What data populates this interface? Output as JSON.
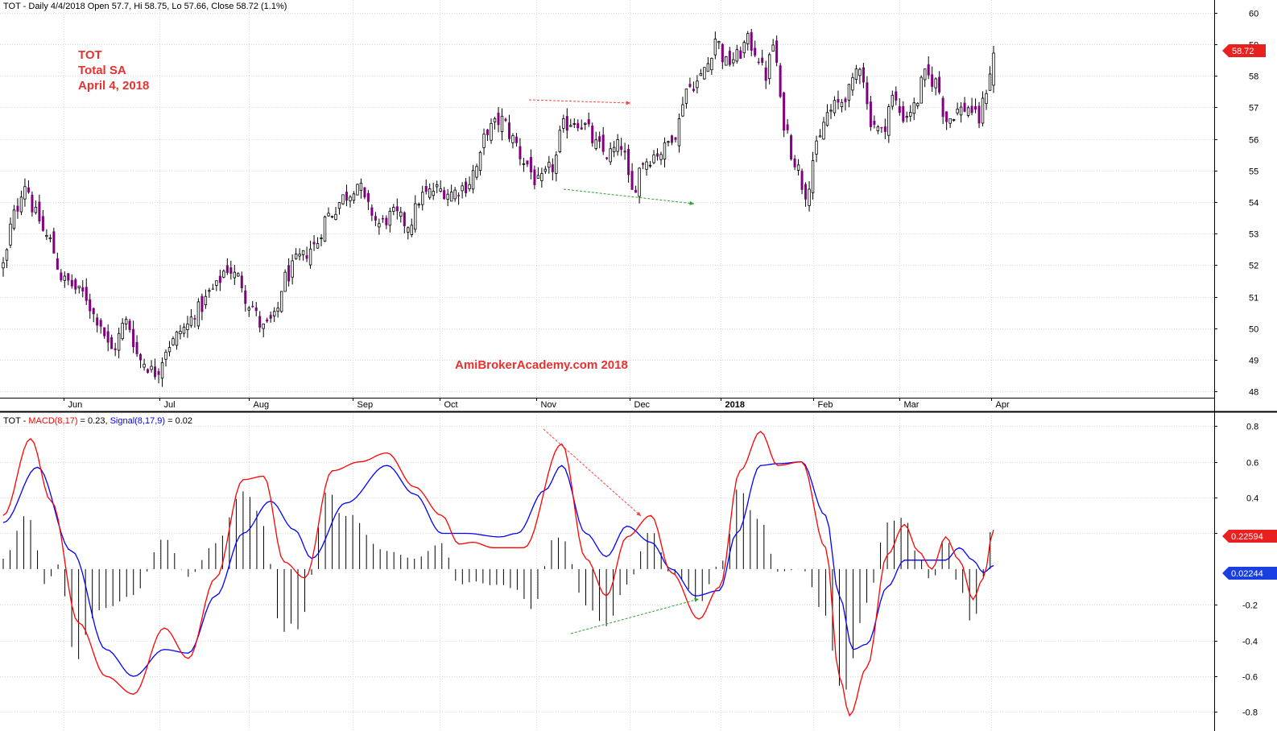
{
  "price_header": {
    "symbol": "TOT",
    "text": "TOT - Daily 4/4/2018 Open 57.7, Hi 58.75, Lo 57.66, Close 58.72 (1.1%)"
  },
  "notes": {
    "line1": "TOT",
    "line2": "Total SA",
    "line3": "April 4, 2018"
  },
  "watermark": "AmiBrokerAcademy.com  2018",
  "macd_header": {
    "prefix": "TOT - ",
    "macd_label": "MACD(8,17)",
    "macd_value": " = 0.23, ",
    "signal_label": "Signal(8,17,9)",
    "signal_value": " = 0.02"
  },
  "badges": {
    "last_close": "58.72",
    "macd_last": "0.22594",
    "signal_last": "0.02244"
  },
  "colors": {
    "up_body": "#ffffff",
    "down_body": "#800080",
    "wick": "#000000",
    "macd_line": "#ff0000",
    "signal_line": "#0000ff",
    "histogram": "#000000",
    "grid": "#d8d8d8",
    "annotation_red": "#ff4040",
    "annotation_green": "#30a030",
    "badge_red": "#e8201f",
    "badge_blue": "#1a3fe0"
  },
  "chart_data": [
    {
      "type": "candlestick",
      "title": "TOT - Daily 4/4/2018 Open 57.7, Hi 58.75, Lo 57.66, Close 58.72 (1.1%)",
      "ylim": [
        47.8,
        60.3
      ],
      "y_ticks": [
        48,
        49,
        50,
        51,
        52,
        53,
        54,
        55,
        56,
        57,
        58,
        59,
        60
      ],
      "x_labels": [
        {
          "label": "Jun",
          "pos": 0.05
        },
        {
          "label": "Jul",
          "pos": 0.125
        },
        {
          "label": "Aug",
          "pos": 0.195
        },
        {
          "label": "Sep",
          "pos": 0.276
        },
        {
          "label": "Oct",
          "pos": 0.344
        },
        {
          "label": "Nov",
          "pos": 0.42
        },
        {
          "label": "Dec",
          "pos": 0.493
        },
        {
          "label": "2018",
          "pos": 0.564,
          "bold": true
        },
        {
          "label": "Feb",
          "pos": 0.637
        },
        {
          "label": "Mar",
          "pos": 0.704
        },
        {
          "label": "Apr",
          "pos": 0.776
        }
      ],
      "grid": true,
      "anchors": [
        [
          0,
          52.0
        ],
        [
          3,
          53.6
        ],
        [
          6,
          54.6
        ],
        [
          9,
          53.6
        ],
        [
          12,
          52.9
        ],
        [
          17,
          51.5
        ],
        [
          22,
          51.1
        ],
        [
          26,
          50.3
        ],
        [
          30,
          49.3
        ],
        [
          34,
          50.2
        ],
        [
          38,
          49.0
        ],
        [
          42,
          48.6
        ],
        [
          46,
          49.5
        ],
        [
          50,
          50.0
        ],
        [
          54,
          50.6
        ],
        [
          58,
          51.2
        ],
        [
          62,
          51.9
        ],
        [
          65,
          51.6
        ],
        [
          68,
          50.8
        ],
        [
          72,
          50.0
        ],
        [
          75,
          50.3
        ],
        [
          78,
          51.6
        ],
        [
          82,
          52.2
        ],
        [
          86,
          52.6
        ],
        [
          90,
          53.6
        ],
        [
          95,
          54.2
        ],
        [
          98,
          54.6
        ],
        [
          101,
          53.8
        ],
        [
          104,
          53.3
        ],
        [
          108,
          53.6
        ],
        [
          112,
          53.3
        ],
        [
          116,
          54.2
        ],
        [
          120,
          54.4
        ],
        [
          124,
          54.3
        ],
        [
          128,
          54.5
        ],
        [
          131,
          55.1
        ],
        [
          134,
          56.3
        ],
        [
          138,
          56.6
        ],
        [
          141,
          56.0
        ],
        [
          144,
          55.3
        ],
        [
          148,
          54.6
        ],
        [
          152,
          55.1
        ],
        [
          155,
          56.4
        ],
        [
          158,
          56.6
        ],
        [
          161,
          56.4
        ],
        [
          164,
          55.8
        ],
        [
          167,
          55.5
        ],
        [
          171,
          55.8
        ],
        [
          174,
          54.3
        ],
        [
          177,
          55.3
        ],
        [
          182,
          55.6
        ],
        [
          186,
          56.2
        ],
        [
          189,
          57.6
        ],
        [
          192,
          57.8
        ],
        [
          195,
          58.4
        ],
        [
          197,
          59.2
        ],
        [
          200,
          58.4
        ],
        [
          203,
          58.6
        ],
        [
          206,
          59.1
        ],
        [
          208,
          58.8
        ],
        [
          211,
          58.0
        ],
        [
          213,
          59.0
        ],
        [
          216,
          56.5
        ],
        [
          219,
          55.3
        ],
        [
          222,
          54.3
        ],
        [
          225,
          55.7
        ],
        [
          228,
          56.8
        ],
        [
          231,
          57.1
        ],
        [
          234,
          57.5
        ],
        [
          237,
          58.4
        ],
        [
          240,
          56.6
        ],
        [
          243,
          56.2
        ],
        [
          246,
          57.3
        ],
        [
          249,
          56.7
        ],
        [
          252,
          57.0
        ],
        [
          255,
          58.0
        ],
        [
          258,
          57.8
        ],
        [
          261,
          56.6
        ],
        [
          264,
          56.9
        ],
        [
          267,
          57.0
        ],
        [
          270,
          56.6
        ],
        [
          272,
          57.6
        ],
        [
          274,
          58.72
        ]
      ]
    },
    {
      "type": "line",
      "title": "TOT - MACD(8,17) = 0.23, Signal(8,17,9) = 0.02",
      "ylim": [
        -0.87,
        0.86
      ],
      "y_ticks": [
        -0.8,
        -0.6,
        -0.4,
        -0.2,
        0.2,
        0.4,
        0.6,
        0.8
      ],
      "grid": true,
      "series": [
        {
          "name": "MACD(8,17)",
          "color": "#ff0000",
          "anchors": [
            [
              0,
              0.3
            ],
            [
              8,
              0.73
            ],
            [
              14,
              0.38
            ],
            [
              22,
              -0.3
            ],
            [
              30,
              -0.6
            ],
            [
              38,
              -0.7
            ],
            [
              47,
              -0.33
            ],
            [
              54,
              -0.5
            ],
            [
              62,
              -0.05
            ],
            [
              70,
              0.5
            ],
            [
              76,
              0.52
            ],
            [
              82,
              0.04
            ],
            [
              88,
              -0.05
            ],
            [
              96,
              0.55
            ],
            [
              104,
              0.6
            ],
            [
              112,
              0.65
            ],
            [
              120,
              0.46
            ],
            [
              128,
              0.3
            ],
            [
              133,
              0.14
            ],
            [
              137,
              0.15
            ],
            [
              143,
              0.12
            ],
            [
              152,
              0.12
            ],
            [
              163,
              0.7
            ],
            [
              170,
              0.06
            ],
            [
              176,
              -0.15
            ],
            [
              182,
              0.18
            ],
            [
              189,
              0.3
            ],
            [
              195,
              -0.02
            ],
            [
              203,
              -0.28
            ],
            [
              209,
              -0.1
            ],
            [
              215,
              0.55
            ],
            [
              221,
              0.77
            ],
            [
              226,
              0.58
            ],
            [
              233,
              0.6
            ],
            [
              240,
              0.12
            ],
            [
              244,
              -0.6
            ],
            [
              247,
              -0.82
            ],
            [
              252,
              -0.55
            ],
            [
              258,
              0.08
            ],
            [
              263,
              0.25
            ],
            [
              267,
              0.1
            ],
            [
              271,
              0.0
            ],
            [
              275,
              0.18
            ],
            [
              279,
              0.05
            ],
            [
              283,
              -0.17
            ],
            [
              286,
              -0.05
            ],
            [
              289,
              0.22
            ]
          ]
        },
        {
          "name": "Signal(8,17,9)",
          "color": "#0000ff",
          "anchors": [
            [
              0,
              0.26
            ],
            [
              10,
              0.57
            ],
            [
              20,
              0.1
            ],
            [
              30,
              -0.45
            ],
            [
              38,
              -0.6
            ],
            [
              47,
              -0.45
            ],
            [
              54,
              -0.47
            ],
            [
              62,
              -0.15
            ],
            [
              70,
              0.2
            ],
            [
              78,
              0.38
            ],
            [
              85,
              0.22
            ],
            [
              90,
              0.06
            ],
            [
              100,
              0.37
            ],
            [
              112,
              0.58
            ],
            [
              120,
              0.42
            ],
            [
              128,
              0.2
            ],
            [
              135,
              0.2
            ],
            [
              145,
              0.18
            ],
            [
              150,
              0.2
            ],
            [
              158,
              0.44
            ],
            [
              163,
              0.58
            ],
            [
              170,
              0.2
            ],
            [
              176,
              0.07
            ],
            [
              182,
              0.24
            ],
            [
              189,
              0.15
            ],
            [
              195,
              0.0
            ],
            [
              202,
              -0.15
            ],
            [
              209,
              -0.12
            ],
            [
              214,
              0.2
            ],
            [
              221,
              0.58
            ],
            [
              226,
              0.59
            ],
            [
              233,
              0.6
            ],
            [
              240,
              0.3
            ],
            [
              244,
              -0.15
            ],
            [
              248,
              -0.45
            ],
            [
              252,
              -0.42
            ],
            [
              258,
              -0.1
            ],
            [
              263,
              0.05
            ],
            [
              268,
              0.05
            ],
            [
              275,
              0.05
            ],
            [
              279,
              0.12
            ],
            [
              283,
              0.05
            ],
            [
              286,
              -0.02
            ],
            [
              289,
              0.02
            ]
          ]
        }
      ]
    }
  ]
}
